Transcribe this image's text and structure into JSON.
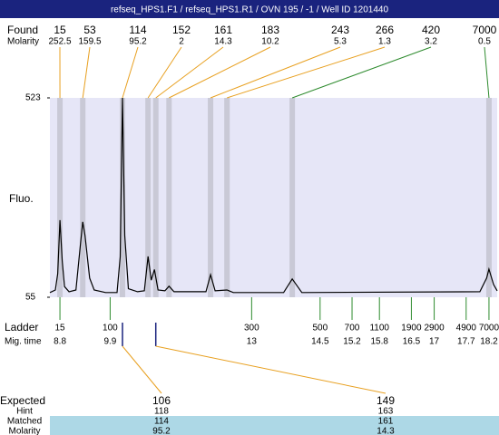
{
  "header": {
    "title": "refseq_HPS1.F1 / refseq_HPS1.R1 / OVN 195 / -1 / Well ID 1201440"
  },
  "chart_data": {
    "type": "line",
    "y_label": "Fluo.",
    "ylim": [
      55,
      523
    ],
    "yticks": [
      55,
      523
    ],
    "xlim": [
      8.58,
      18.38
    ],
    "background": "#e6e6f7",
    "band_color": "#c9c9d6",
    "x": [
      8.58,
      8.7,
      8.75,
      8.8,
      8.85,
      8.9,
      9.0,
      9.15,
      9.25,
      9.3,
      9.35,
      9.45,
      9.55,
      9.8,
      10.05,
      10.12,
      10.17,
      10.22,
      10.3,
      10.5,
      10.65,
      10.73,
      10.8,
      10.87,
      10.95,
      11.1,
      11.19,
      11.3,
      12.0,
      12.1,
      12.2,
      12.46,
      12.6,
      13.7,
      13.89,
      14.1,
      18.0,
      18.15,
      18.2,
      18.3,
      18.38
    ],
    "series": [
      {
        "color": "#000000",
        "values": [
          66,
          72,
          110,
          236,
          140,
          80,
          68,
          72,
          180,
          232,
          200,
          100,
          72,
          66,
          66,
          150,
          523,
          200,
          75,
          68,
          70,
          151,
          95,
          120,
          72,
          70,
          81,
          68,
          68,
          108,
          70,
          72,
          66,
          66,
          98,
          66,
          68,
          100,
          121,
          85,
          70
        ]
      }
    ],
    "found": {
      "label": "Found",
      "molarity_label": "Molarity",
      "peaks": [
        {
          "size": 15,
          "molarity": 252.5,
          "time": 8.8,
          "color": "#e8a020"
        },
        {
          "size": 53,
          "molarity": 159.5,
          "time": 9.3,
          "color": "#e8a020"
        },
        {
          "size": 114,
          "molarity": 95.2,
          "time": 10.17,
          "color": "#e8a020"
        },
        {
          "size": 152,
          "molarity": 2,
          "time": 10.73,
          "color": "#e8a020"
        },
        {
          "size": 161,
          "molarity": 14.3,
          "time": 10.9,
          "color": "#e8a020"
        },
        {
          "size": 183,
          "molarity": 10.2,
          "time": 11.19,
          "color": "#e8a020"
        },
        {
          "size": 243,
          "molarity": 5.3,
          "time": 12.1,
          "color": "#e8a020"
        },
        {
          "size": 266,
          "molarity": 1.3,
          "time": 12.46,
          "color": "#e8a020"
        },
        {
          "size": 420,
          "molarity": 3.2,
          "time": 13.89,
          "color": "#2e8b2e"
        },
        {
          "size": 7000,
          "molarity": 0.5,
          "time": 18.2,
          "color": "#2e8b2e"
        }
      ]
    },
    "ladder": {
      "label": "Ladder",
      "time_label": "Mig. time",
      "color": "#2e8b2e",
      "sizes": [
        15,
        100,
        300,
        500,
        700,
        1100,
        1900,
        2900,
        4900,
        7000
      ],
      "times": [
        8.8,
        9.9,
        13,
        14.5,
        15.2,
        15.8,
        16.5,
        17,
        17.7,
        18.2
      ]
    },
    "expected": {
      "labels": [
        "Expected",
        "Hint",
        "Matched",
        "Molarity"
      ],
      "highlight": "#add8e6",
      "items": [
        {
          "expected": 106,
          "hint": 118,
          "matched": 114,
          "molarity": 95.2
        },
        {
          "expected": 149,
          "hint": 163,
          "matched": 161,
          "molarity": 14.3
        }
      ]
    }
  }
}
